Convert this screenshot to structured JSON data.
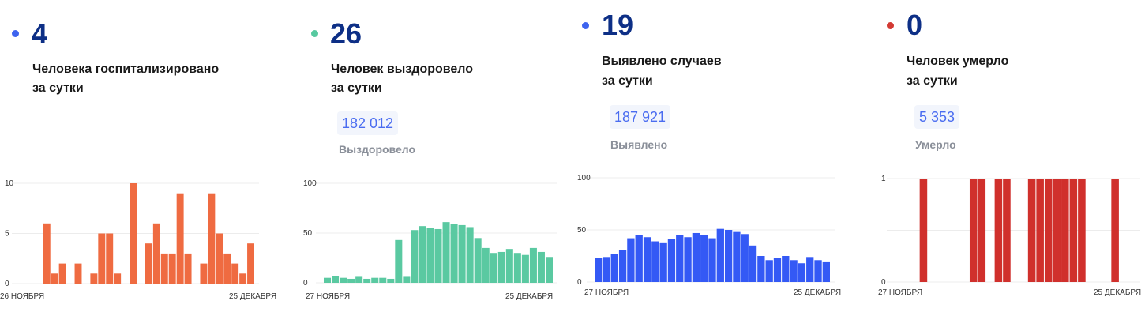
{
  "cards": [
    {
      "value": "4",
      "label_line1": "Человека госпитализировано",
      "label_line2": "за сутки",
      "dot_color": "#3d63ef"
    },
    {
      "value": "26",
      "label_line1": "Человек выздоровело",
      "label_line2": "за сутки",
      "total": "182 012",
      "total_caption": "Выздоровело",
      "dot_color": "#57c9a0"
    },
    {
      "value": "19",
      "label_line1": "Выявлено случаев",
      "label_line2": "за сутки",
      "total": "187 921",
      "total_caption": "Выявлено",
      "dot_color": "#3d63ef"
    },
    {
      "value": "0",
      "label_line1": "Человек умерло",
      "label_line2": "за сутки",
      "total": "5 353",
      "total_caption": "Умерло",
      "dot_color": "#d33a33"
    }
  ],
  "chart_data": [
    {
      "type": "bar",
      "color": "#ef6b41",
      "x_start_label": "26 НОЯБРЯ",
      "x_end_label": "25 ДЕКАБРЯ",
      "ylim": [
        0,
        10
      ],
      "yticks": [
        0,
        5,
        10
      ],
      "grid": true,
      "values": [
        0,
        0,
        0,
        6,
        1,
        2,
        0,
        2,
        0,
        1,
        5,
        5,
        1,
        0,
        10,
        0,
        4,
        6,
        3,
        3,
        9,
        3,
        0,
        2,
        9,
        5,
        3,
        2,
        1,
        4
      ]
    },
    {
      "type": "bar",
      "color": "#5ac9a1",
      "x_start_label": "27 НОЯБРЯ",
      "x_end_label": "25 ДЕКАБРЯ",
      "ylim": [
        0,
        100
      ],
      "yticks": [
        0,
        50,
        100
      ],
      "grid": true,
      "values": [
        5,
        7,
        5,
        4,
        6,
        4,
        5,
        5,
        4,
        43,
        6,
        53,
        57,
        55,
        54,
        61,
        59,
        58,
        56,
        45,
        35,
        30,
        31,
        34,
        30,
        28,
        35,
        31,
        26
      ]
    },
    {
      "type": "bar",
      "color": "#3459f5",
      "x_start_label": "27 НОЯБРЯ",
      "x_end_label": "25 ДЕКАБРЯ",
      "ylim": [
        0,
        100
      ],
      "yticks": [
        0,
        50,
        100
      ],
      "grid": true,
      "values": [
        23,
        24,
        27,
        31,
        42,
        45,
        43,
        39,
        38,
        41,
        45,
        43,
        47,
        45,
        42,
        51,
        50,
        48,
        46,
        35,
        25,
        21,
        23,
        25,
        21,
        18,
        24,
        21,
        19
      ]
    },
    {
      "type": "bar",
      "color": "#d0302c",
      "x_start_label": "27 НОЯБРЯ",
      "x_end_label": "25 ДЕКАБРЯ",
      "ylim": [
        0,
        1
      ],
      "yticks": [
        0,
        1
      ],
      "grid": true,
      "values": [
        0,
        0,
        0,
        1,
        0,
        0,
        0,
        0,
        0,
        1,
        1,
        0,
        1,
        1,
        0,
        0,
        1,
        1,
        1,
        1,
        1,
        1,
        1,
        0,
        0,
        0,
        1,
        0,
        0
      ]
    }
  ]
}
